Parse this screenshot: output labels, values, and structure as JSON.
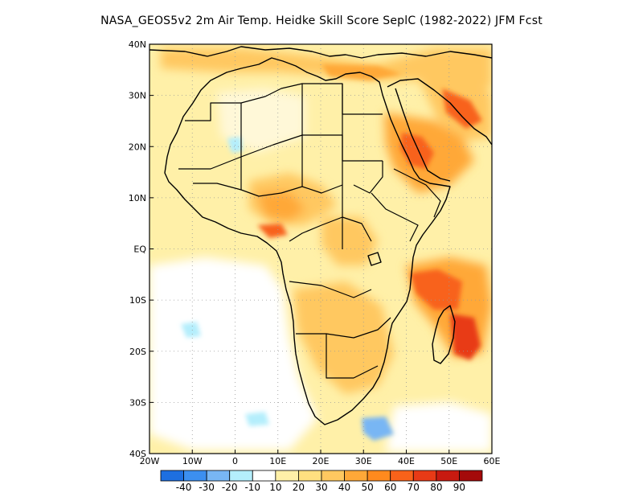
{
  "title": "NASA_GEOS5v2  2m Air Temp. Heidke Skill Score SeplC (1982-2022) JFM Fcst",
  "map": {
    "lon_range": [
      -20,
      60
    ],
    "lat_range": [
      -40,
      40
    ],
    "lon_ticks": [
      {
        "lon": -20,
        "label": "20W"
      },
      {
        "lon": -10,
        "label": "10W"
      },
      {
        "lon": 0,
        "label": "0"
      },
      {
        "lon": 10,
        "label": "10E"
      },
      {
        "lon": 20,
        "label": "20E"
      },
      {
        "lon": 30,
        "label": "30E"
      },
      {
        "lon": 40,
        "label": "40E"
      },
      {
        "lon": 50,
        "label": "50E"
      },
      {
        "lon": 60,
        "label": "60E"
      }
    ],
    "lat_ticks": [
      {
        "lat": 40,
        "label": "40N"
      },
      {
        "lat": 30,
        "label": "30N"
      },
      {
        "lat": 20,
        "label": "20N"
      },
      {
        "lat": 10,
        "label": "10N"
      },
      {
        "lat": 0,
        "label": "EQ"
      },
      {
        "lat": -10,
        "label": "10S"
      },
      {
        "lat": -20,
        "label": "20S"
      },
      {
        "lat": -30,
        "label": "30S"
      },
      {
        "lat": -40,
        "label": "40S"
      }
    ],
    "grid": true
  },
  "colorbar": {
    "colors": [
      "#1e6fe0",
      "#3c8ff0",
      "#78b6f4",
      "#b4eefc",
      "#ffffff",
      "#fff0a8",
      "#ffe080",
      "#ffc860",
      "#ffa838",
      "#ff8a1e",
      "#f8621a",
      "#e83a16",
      "#c81a10",
      "#a40a0a"
    ],
    "labels": [
      "-40",
      "-30",
      "-20",
      "-10",
      "10",
      "20",
      "30",
      "40",
      "50",
      "60",
      "70",
      "80",
      "90"
    ]
  }
}
